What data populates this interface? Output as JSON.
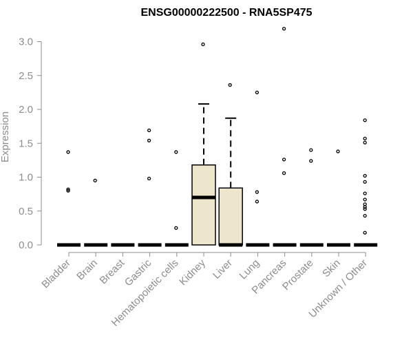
{
  "chart_data": {
    "type": "box",
    "title": "ENSG00000222500 - RNA5SP475",
    "ylabel": "Expression",
    "xlabel": "",
    "ylim": [
      0,
      3.2
    ],
    "yticks": [
      0.0,
      0.5,
      1.0,
      1.5,
      2.0,
      2.5,
      3.0
    ],
    "ytick_labels": [
      "0.0",
      "0.5",
      "1.0",
      "1.5",
      "2.0",
      "2.5",
      "3.0"
    ],
    "grid": false,
    "box_fill": "#ede5cc",
    "categories": [
      "Bladder",
      "Brain",
      "Breast",
      "Gastric",
      "Hematopoietic cells",
      "Kidney",
      "Liver",
      "Lung",
      "Pancreas",
      "Prostate",
      "Skin",
      "Unknown / Other"
    ],
    "boxes": [
      {
        "category": "Bladder",
        "q1": 0,
        "median": 0,
        "q3": 0,
        "whisker_low": 0,
        "whisker_high": 0,
        "outliers": [
          1.37,
          0.82,
          0.8
        ]
      },
      {
        "category": "Brain",
        "q1": 0,
        "median": 0,
        "q3": 0,
        "whisker_low": 0,
        "whisker_high": 0,
        "outliers": [
          0.95
        ]
      },
      {
        "category": "Breast",
        "q1": 0,
        "median": 0,
        "q3": 0,
        "whisker_low": 0,
        "whisker_high": 0,
        "outliers": []
      },
      {
        "category": "Gastric",
        "q1": 0,
        "median": 0,
        "q3": 0,
        "whisker_low": 0,
        "whisker_high": 0,
        "outliers": [
          1.69,
          1.54,
          0.98
        ]
      },
      {
        "category": "Hematopoietic cells",
        "q1": 0,
        "median": 0,
        "q3": 0,
        "whisker_low": 0,
        "whisker_high": 0,
        "outliers": [
          1.37,
          0.25
        ]
      },
      {
        "category": "Kidney",
        "q1": 0,
        "median": 0.7,
        "q3": 1.18,
        "whisker_low": 0,
        "whisker_high": 2.08,
        "outliers": [
          2.96
        ]
      },
      {
        "category": "Liver",
        "q1": 0,
        "median": 0,
        "q3": 0.84,
        "whisker_low": 0,
        "whisker_high": 1.87,
        "outliers": [
          2.36
        ]
      },
      {
        "category": "Lung",
        "q1": 0,
        "median": 0,
        "q3": 0,
        "whisker_low": 0,
        "whisker_high": 0,
        "outliers": [
          2.25,
          0.78,
          0.64
        ]
      },
      {
        "category": "Pancreas",
        "q1": 0,
        "median": 0,
        "q3": 0,
        "whisker_low": 0,
        "whisker_high": 0,
        "outliers": [
          3.19,
          1.26,
          1.06
        ]
      },
      {
        "category": "Prostate",
        "q1": 0,
        "median": 0,
        "q3": 0,
        "whisker_low": 0,
        "whisker_high": 0,
        "outliers": [
          1.4,
          1.24
        ]
      },
      {
        "category": "Skin",
        "q1": 0,
        "median": 0,
        "q3": 0,
        "whisker_low": 0,
        "whisker_high": 0,
        "outliers": [
          1.38
        ]
      },
      {
        "category": "Unknown / Other",
        "q1": 0,
        "median": 0,
        "q3": 0,
        "whisker_low": 0,
        "whisker_high": 0,
        "outliers": [
          1.84,
          1.57,
          1.51,
          1.02,
          0.93,
          0.76,
          0.67,
          0.6,
          0.56,
          0.53,
          0.43,
          0.18
        ]
      }
    ]
  }
}
